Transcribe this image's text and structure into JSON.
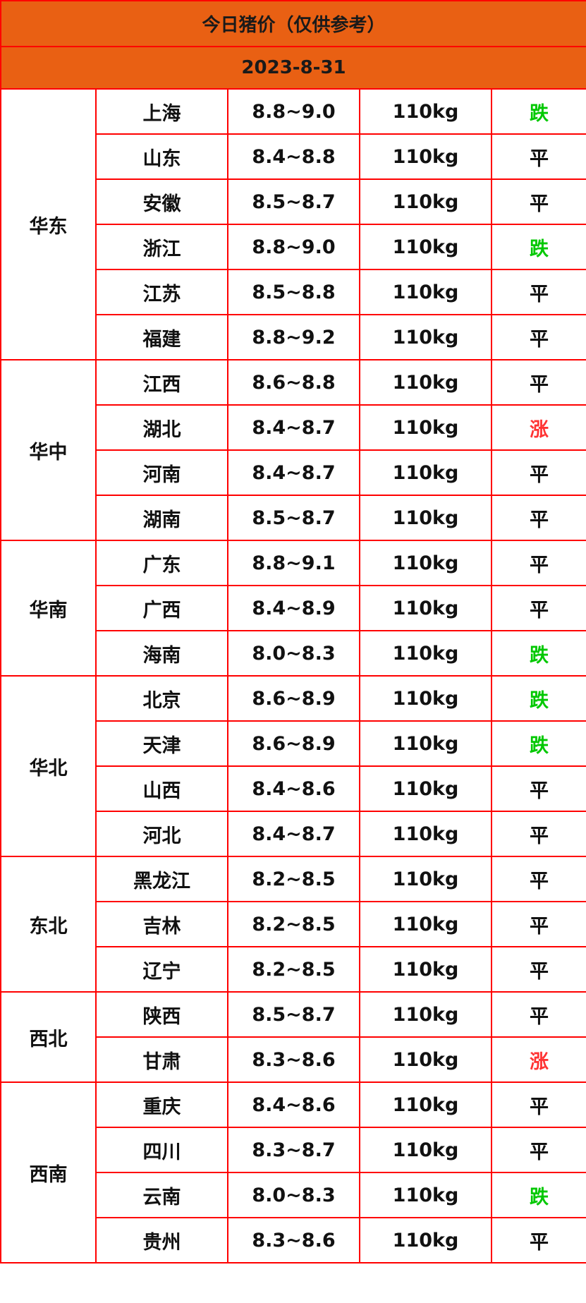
{
  "title": "今日猪价（仅供参考）",
  "date": "2023-8-31",
  "colors": {
    "header_bg": "#e96013",
    "border": "#ff0000",
    "up": "#ff3333",
    "down": "#00c800",
    "flat": "#111111"
  },
  "regions": [
    {
      "name": "华东",
      "rows": [
        [
          "上海",
          "8.8~9.0",
          "110kg",
          "跌"
        ],
        [
          "山东",
          "8.4~8.8",
          "110kg",
          "平"
        ],
        [
          "安徽",
          "8.5~8.7",
          "110kg",
          "平"
        ],
        [
          "浙江",
          "8.8~9.0",
          "110kg",
          "跌"
        ],
        [
          "江苏",
          "8.5~8.8",
          "110kg",
          "平"
        ],
        [
          "福建",
          "8.8~9.2",
          "110kg",
          "平"
        ]
      ]
    },
    {
      "name": "华中",
      "rows": [
        [
          "江西",
          "8.6~8.8",
          "110kg",
          "平"
        ],
        [
          "湖北",
          "8.4~8.7",
          "110kg",
          "涨"
        ],
        [
          "河南",
          "8.4~8.7",
          "110kg",
          "平"
        ],
        [
          "湖南",
          "8.5~8.7",
          "110kg",
          "平"
        ]
      ]
    },
    {
      "name": "华南",
      "rows": [
        [
          "广东",
          "8.8~9.1",
          "110kg",
          "平"
        ],
        [
          "广西",
          "8.4~8.9",
          "110kg",
          "平"
        ],
        [
          "海南",
          "8.0~8.3",
          "110kg",
          "跌"
        ]
      ]
    },
    {
      "name": "华北",
      "rows": [
        [
          "北京",
          "8.6~8.9",
          "110kg",
          "跌"
        ],
        [
          "天津",
          "8.6~8.9",
          "110kg",
          "跌"
        ],
        [
          "山西",
          "8.4~8.6",
          "110kg",
          "平"
        ],
        [
          "河北",
          "8.4~8.7",
          "110kg",
          "平"
        ]
      ]
    },
    {
      "name": "东北",
      "rows": [
        [
          "黑龙江",
          "8.2~8.5",
          "110kg",
          "平"
        ],
        [
          "吉林",
          "8.2~8.5",
          "110kg",
          "平"
        ],
        [
          "辽宁",
          "8.2~8.5",
          "110kg",
          "平"
        ]
      ]
    },
    {
      "name": "西北",
      "rows": [
        [
          "陕西",
          "8.5~8.7",
          "110kg",
          "平"
        ],
        [
          "甘肃",
          "8.3~8.6",
          "110kg",
          "涨"
        ]
      ]
    },
    {
      "name": "西南",
      "rows": [
        [
          "重庆",
          "8.4~8.6",
          "110kg",
          "平"
        ],
        [
          "四川",
          "8.3~8.7",
          "110kg",
          "平"
        ],
        [
          "云南",
          "8.0~8.3",
          "110kg",
          "跌"
        ],
        [
          "贵州",
          "8.3~8.6",
          "110kg",
          "平"
        ]
      ]
    }
  ]
}
